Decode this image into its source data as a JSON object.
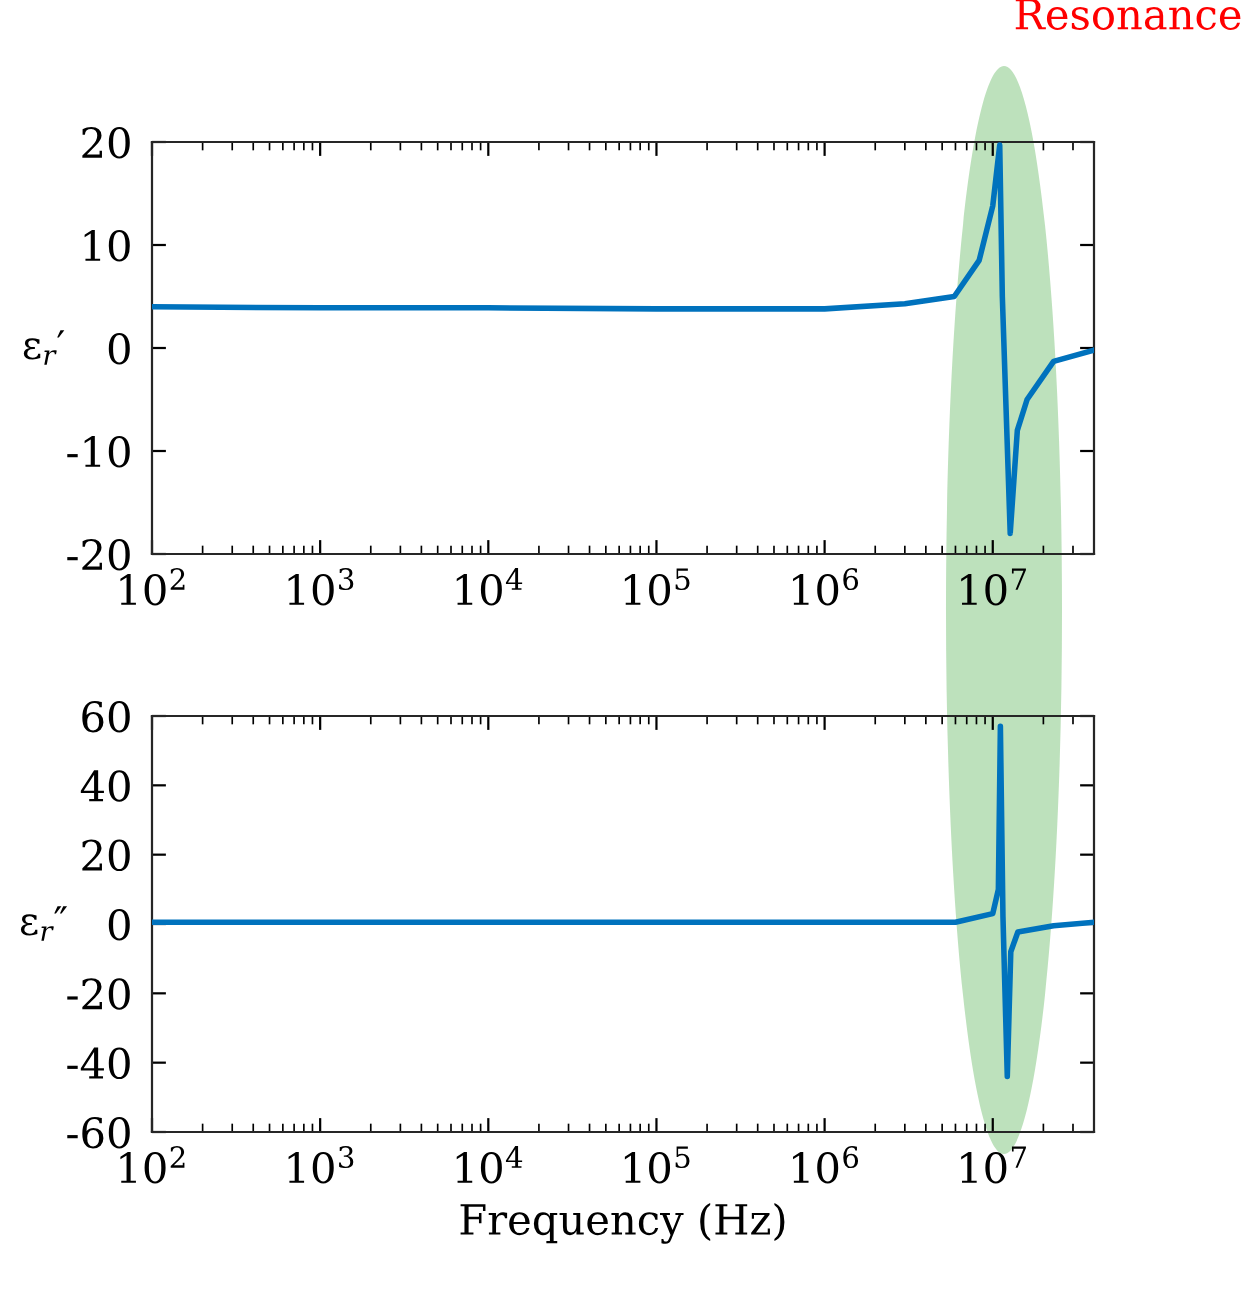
{
  "chart_data": [
    {
      "type": "line",
      "ylabel": "ε$_{r}$′",
      "log": "x",
      "grid": false,
      "legend": false,
      "x": [
        100,
        1000,
        10000,
        100000,
        1000000,
        3000000,
        5900000,
        8300000,
        10000000,
        11000000,
        11400000,
        12700000,
        14000000,
        16000000,
        23000000,
        40000000
      ],
      "series": [
        {
          "color": "#0072bd",
          "values": [
            4.0,
            3.9,
            3.9,
            3.8,
            3.8,
            4.3,
            5.0,
            8.5,
            13.8,
            19.7,
            5.0,
            -18.0,
            -8.0,
            -5.0,
            -1.3,
            -0.2
          ]
        }
      ],
      "xlim": [
        100,
        40000000
      ],
      "xticks": [
        {
          "value": 100,
          "label": "10$^{2}$"
        },
        {
          "value": 1000,
          "label": "10$^{3}$"
        },
        {
          "value": 10000,
          "label": "10$^{4}$"
        },
        {
          "value": 100000,
          "label": "10$^{5}$"
        },
        {
          "value": 1000000,
          "label": "10$^{6}$"
        },
        {
          "value": 10000000,
          "label": "10$^{7}$"
        }
      ],
      "ylim": [
        -20,
        20
      ],
      "yticks": [
        -20,
        -10,
        0,
        10,
        20
      ],
      "annotations": [
        "Resonance"
      ]
    },
    {
      "type": "line",
      "ylabel": "ε$_{r}$″",
      "xlabel": "Frequency (Hz)",
      "log": "x",
      "grid": false,
      "legend": false,
      "x": [
        100,
        1000,
        10000,
        100000,
        1000000,
        6000000,
        10000000,
        10800000,
        11100000,
        11500000,
        12200000,
        12800000,
        14100000,
        23000000,
        40000000
      ],
      "series": [
        {
          "color": "#0072bd",
          "values": [
            0.5,
            0.5,
            0.5,
            0.5,
            0.5,
            0.5,
            3.0,
            10.0,
            57.0,
            2.0,
            -44.0,
            -8.0,
            -2.3,
            -0.5,
            0.5
          ]
        }
      ],
      "xlim": [
        100,
        40000000
      ],
      "xticks": [
        {
          "value": 100,
          "label": "10$^{2}$"
        },
        {
          "value": 1000,
          "label": "10$^{3}$"
        },
        {
          "value": 10000,
          "label": "10$^{4}$"
        },
        {
          "value": 100000,
          "label": "10$^{5}$"
        },
        {
          "value": 1000000,
          "label": "10$^{6}$"
        },
        {
          "value": 10000000,
          "label": "10$^{7}$"
        }
      ],
      "ylim": [
        -60,
        60
      ],
      "yticks": [
        -60,
        -40,
        -20,
        0,
        20,
        40,
        60
      ]
    }
  ]
}
